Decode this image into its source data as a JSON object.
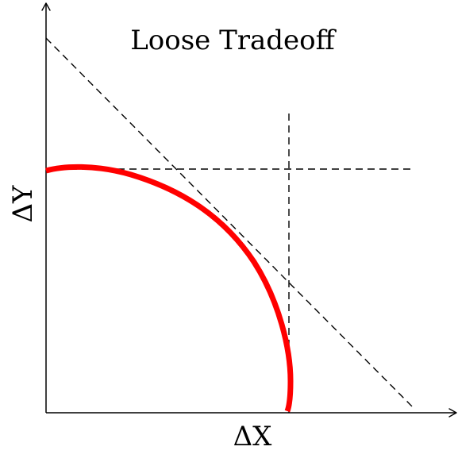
{
  "diagram": {
    "title": "Loose Tradeoff",
    "x_axis_label": "ΔX",
    "y_axis_label": "ΔY",
    "curve_color": "#ff0000",
    "line_color": "#000000",
    "dash_color": "#000000"
  }
}
